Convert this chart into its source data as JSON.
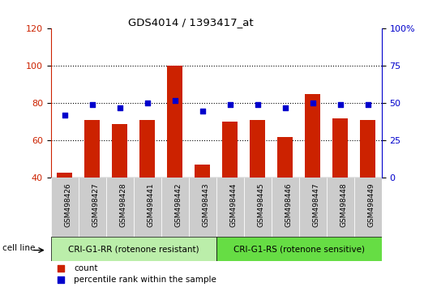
{
  "title": "GDS4014 / 1393417_at",
  "categories": [
    "GSM498426",
    "GSM498427",
    "GSM498428",
    "GSM498441",
    "GSM498442",
    "GSM498443",
    "GSM498444",
    "GSM498445",
    "GSM498446",
    "GSM498447",
    "GSM498448",
    "GSM498449"
  ],
  "count_values": [
    43,
    71,
    69,
    71,
    100,
    47,
    70,
    71,
    62,
    85,
    72,
    71
  ],
  "percentile_values": [
    42,
    49,
    47,
    50,
    52,
    45,
    49,
    49,
    47,
    50,
    49,
    49
  ],
  "bar_color": "#cc2200",
  "marker_color": "#0000cc",
  "ylim_left": [
    40,
    120
  ],
  "ylim_right": [
    0,
    100
  ],
  "yticks_left": [
    40,
    60,
    80,
    100,
    120
  ],
  "yticks_right": [
    0,
    25,
    50,
    75,
    100
  ],
  "ytick_labels_right": [
    "0",
    "25",
    "50",
    "75",
    "100%"
  ],
  "group1_label": "CRI-G1-RR (rotenone resistant)",
  "group2_label": "CRI-G1-RS (rotenone sensitive)",
  "group1_count": 6,
  "group2_count": 6,
  "cell_line_label": "cell line",
  "legend_count": "count",
  "legend_percentile": "percentile rank within the sample",
  "background_color": "#ffffff",
  "bar_width": 0.55,
  "group1_color": "#bbeeaa",
  "group2_color": "#66dd44",
  "tick_bg_color": "#cccccc",
  "grid_dotted_color": "#000000"
}
